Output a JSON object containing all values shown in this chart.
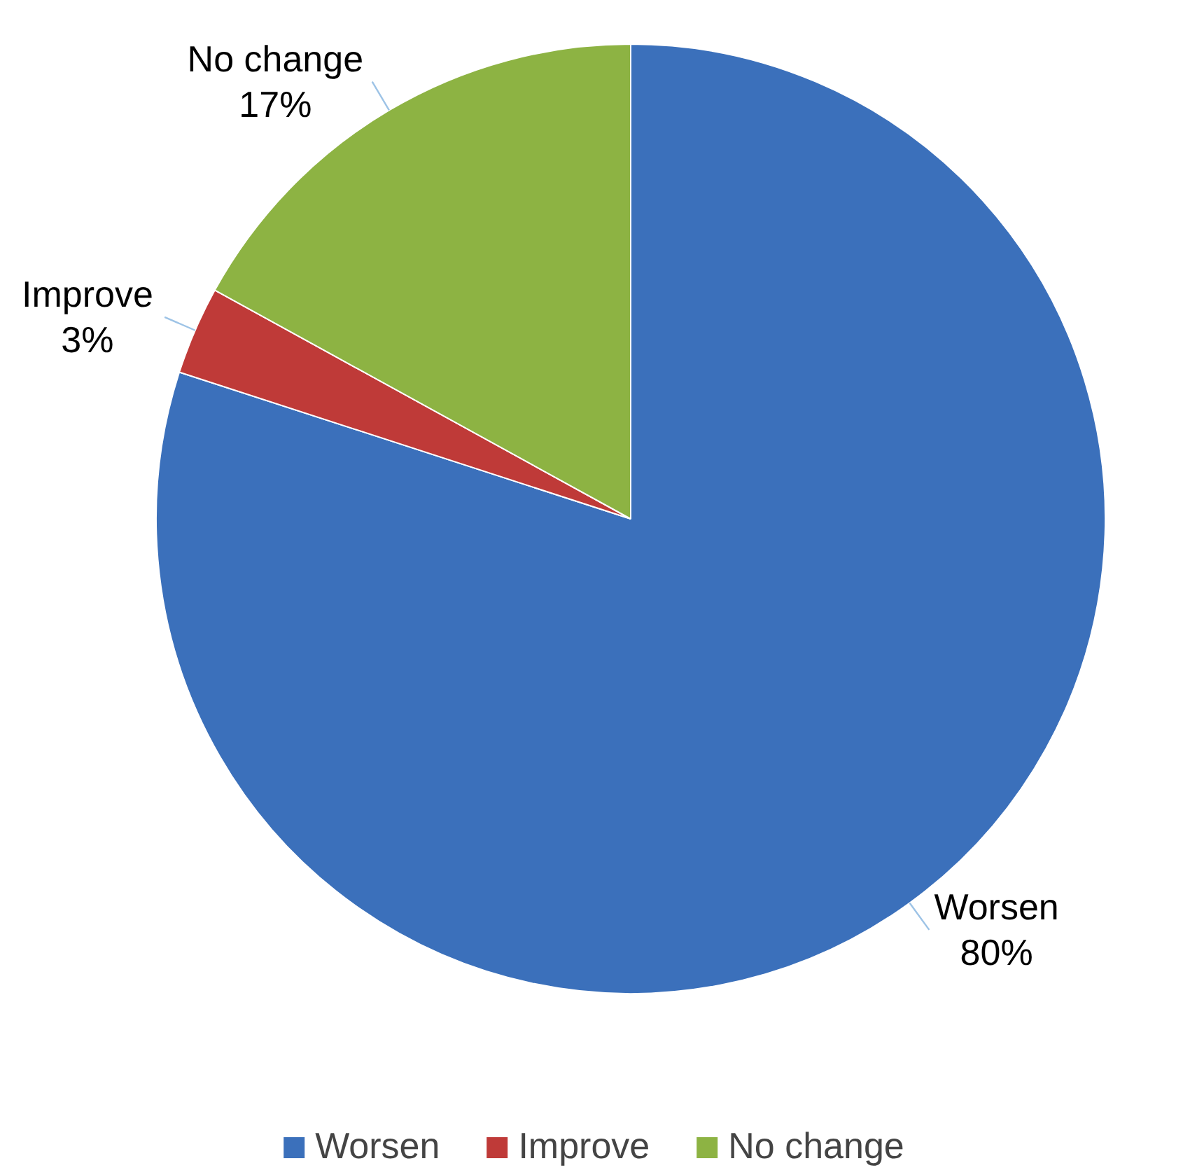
{
  "chart_data": {
    "type": "pie",
    "categories": [
      "Worsen",
      "Improve",
      "No change"
    ],
    "values": [
      80,
      3,
      17
    ],
    "colors": [
      "#3b70bb",
      "#bf3a38",
      "#8db343"
    ],
    "value_labels": [
      "80%",
      "3%",
      "17%"
    ],
    "legend": "bottom"
  }
}
